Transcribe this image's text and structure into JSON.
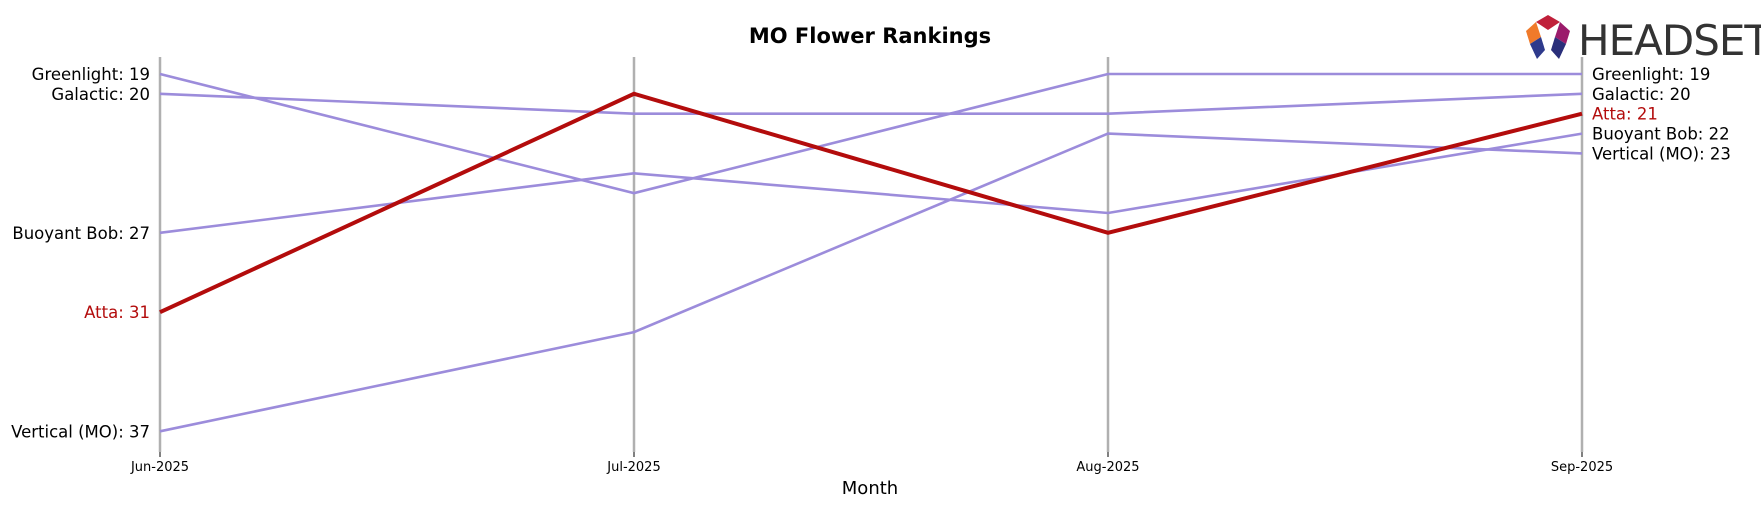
{
  "chart_data": {
    "type": "line",
    "title": "MO Flower Rankings",
    "xlabel": "Month",
    "ylabel": "",
    "x": [
      "Jun-2025",
      "Jul-2025",
      "Aug-2025",
      "Sep-2025"
    ],
    "y_inverted": true,
    "ylim": [
      18,
      38
    ],
    "grid": "vertical lines at each month",
    "series": [
      {
        "name": "Greenlight",
        "values": [
          19,
          25,
          19,
          19
        ],
        "highlight": false
      },
      {
        "name": "Galactic",
        "values": [
          20,
          21,
          21,
          20
        ],
        "highlight": false
      },
      {
        "name": "Buoyant Bob",
        "values": [
          27,
          24,
          26,
          22
        ],
        "highlight": false
      },
      {
        "name": "Atta",
        "values": [
          31,
          20,
          27,
          21
        ],
        "highlight": true
      },
      {
        "name": "Vertical (MO)",
        "values": [
          37,
          32,
          22,
          23
        ],
        "highlight": false
      }
    ],
    "left_labels": [
      "Greenlight: 19",
      "Galactic: 20",
      "Buoyant Bob: 27",
      "Atta: 31",
      "Vertical (MO): 37"
    ],
    "right_labels": [
      "Greenlight: 19",
      "Galactic: 20",
      "Atta: 21",
      "Buoyant Bob: 22",
      "Vertical (MO): 23"
    ],
    "colors": {
      "highlight": "#b30c0c",
      "other": "#9c8cdb",
      "gridline": "#b0b0b0",
      "text": "#000000"
    }
  },
  "logo": {
    "text": "HEADSET"
  }
}
